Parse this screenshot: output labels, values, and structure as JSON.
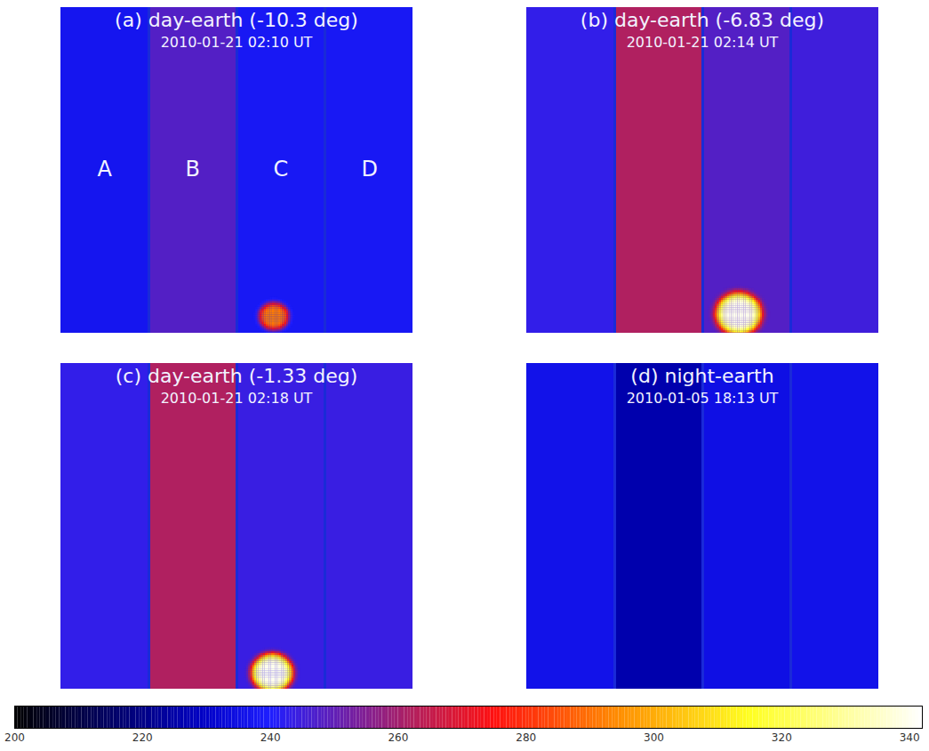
{
  "chart_data": {
    "type": "image_panels",
    "detector": {
      "xlim": [
        0,
        1024
      ],
      "ylim": [
        0,
        1024
      ],
      "segment_edges": [
        0,
        256,
        512,
        768,
        1024
      ]
    },
    "colorbar": {
      "range": [
        200,
        342
      ],
      "ticks": [
        200,
        220,
        240,
        260,
        280,
        300,
        320,
        340
      ],
      "stops": [
        {
          "value": 200,
          "color": "#000000"
        },
        {
          "value": 230,
          "color": "#0000c8"
        },
        {
          "value": 240,
          "color": "#1e1eff"
        },
        {
          "value": 262,
          "color": "#b02060"
        },
        {
          "value": 275,
          "color": "#ff1010"
        },
        {
          "value": 295,
          "color": "#ff9000"
        },
        {
          "value": 315,
          "color": "#ffff20"
        },
        {
          "value": 342,
          "color": "#ffffff"
        }
      ]
    },
    "panels": [
      {
        "title": "(a) day-earth (-10.3 deg)",
        "subtitle": "2010-01-21 02:10 UT",
        "segment_labels": [
          "A",
          "B",
          "C",
          "D"
        ],
        "segment_values": [
          237,
          248,
          238,
          238
        ],
        "source": {
          "x": 621,
          "y": 52,
          "radius": 45,
          "peak": 292
        }
      },
      {
        "title": "(b) day-earth (-6.83 deg)",
        "subtitle": "2010-01-21 02:14 UT",
        "segment_values": [
          243,
          262,
          248,
          245
        ],
        "source": {
          "x": 618,
          "y": 60,
          "radius": 68,
          "peak": 340
        }
      },
      {
        "title": "(c) day-earth (-1.33 deg)",
        "subtitle": "2010-01-21 02:18 UT",
        "segment_values": [
          243,
          262,
          244,
          244
        ],
        "source": {
          "x": 616,
          "y": 50,
          "radius": 62,
          "peak": 340
        }
      },
      {
        "title": "(d) night-earth",
        "subtitle": "2010-01-05 18:13 UT",
        "segment_values": [
          236,
          226,
          235,
          236
        ]
      }
    ]
  }
}
